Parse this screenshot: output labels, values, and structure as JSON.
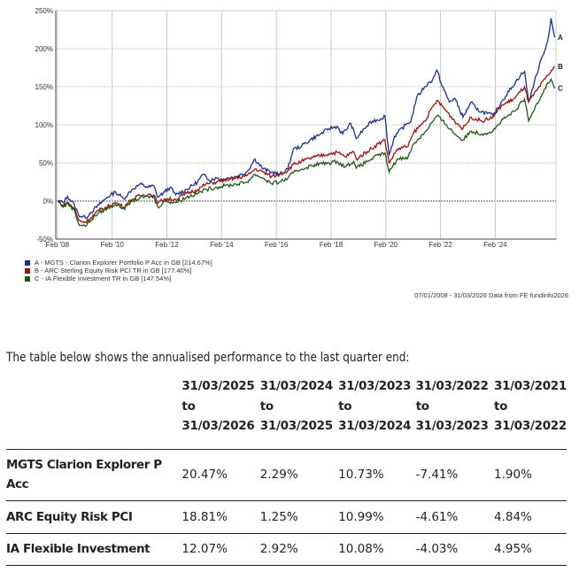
{
  "chart_data": {
    "type": "line",
    "title": "",
    "xlabel": "",
    "ylabel": "",
    "xlim": [
      2008.02,
      2026.3
    ],
    "ylim": [
      -50,
      250
    ],
    "yticks": [
      -50,
      0,
      50,
      100,
      150,
      200,
      250
    ],
    "ytick_labels": [
      "-50%",
      "0%",
      "50%",
      "100%",
      "150%",
      "200%",
      "250%"
    ],
    "xticks": [
      2008.08,
      2010.08,
      2012.08,
      2014.08,
      2016.08,
      2018.08,
      2020.08,
      2022.08,
      2024.08
    ],
    "xtick_labels": [
      "Feb '08",
      "Feb '10",
      "Feb '12",
      "Feb '14",
      "Feb '16",
      "Feb '18",
      "Feb '20",
      "Feb '22",
      "Feb '24"
    ],
    "grid": true,
    "legend_placement": "bottom-left",
    "series": [
      {
        "name": "A - MGTS - Clarion Explorer Portfolio P Acc in GB [214.67%]",
        "end_label": "A",
        "color": "#1a2f96",
        "points": [
          [
            2008.1,
            0
          ],
          [
            2008.3,
            -2
          ],
          [
            2008.45,
            6
          ],
          [
            2008.7,
            -5
          ],
          [
            2008.85,
            -18
          ],
          [
            2009.1,
            -22
          ],
          [
            2009.3,
            -15
          ],
          [
            2009.6,
            -5
          ],
          [
            2009.9,
            5
          ],
          [
            2010.2,
            12
          ],
          [
            2010.5,
            3
          ],
          [
            2010.8,
            15
          ],
          [
            2011.1,
            22
          ],
          [
            2011.4,
            18
          ],
          [
            2011.6,
            20
          ],
          [
            2011.75,
            5
          ],
          [
            2012.0,
            12
          ],
          [
            2012.2,
            18
          ],
          [
            2012.4,
            8
          ],
          [
            2012.8,
            15
          ],
          [
            2013.2,
            25
          ],
          [
            2013.4,
            35
          ],
          [
            2013.6,
            28
          ],
          [
            2013.9,
            30
          ],
          [
            2014.2,
            28
          ],
          [
            2014.6,
            32
          ],
          [
            2015.0,
            38
          ],
          [
            2015.3,
            55
          ],
          [
            2015.6,
            42
          ],
          [
            2015.9,
            38
          ],
          [
            2016.2,
            35
          ],
          [
            2016.5,
            42
          ],
          [
            2016.7,
            68
          ],
          [
            2017.0,
            72
          ],
          [
            2017.3,
            80
          ],
          [
            2017.7,
            88
          ],
          [
            2018.0,
            95
          ],
          [
            2018.3,
            98
          ],
          [
            2018.5,
            88
          ],
          [
            2018.8,
            102
          ],
          [
            2019.0,
            82
          ],
          [
            2019.3,
            95
          ],
          [
            2019.6,
            105
          ],
          [
            2019.9,
            108
          ],
          [
            2020.05,
            112
          ],
          [
            2020.2,
            60
          ],
          [
            2020.4,
            85
          ],
          [
            2020.8,
            100
          ],
          [
            2021.0,
            105
          ],
          [
            2021.2,
            135
          ],
          [
            2021.5,
            150
          ],
          [
            2021.8,
            160
          ],
          [
            2021.95,
            172
          ],
          [
            2022.1,
            155
          ],
          [
            2022.4,
            130
          ],
          [
            2022.6,
            135
          ],
          [
            2022.9,
            110
          ],
          [
            2023.2,
            130
          ],
          [
            2023.4,
            120
          ],
          [
            2023.8,
            115
          ],
          [
            2024.0,
            112
          ],
          [
            2024.3,
            130
          ],
          [
            2024.7,
            150
          ],
          [
            2025.0,
            165
          ],
          [
            2025.15,
            170
          ],
          [
            2025.3,
            130
          ],
          [
            2025.5,
            155
          ],
          [
            2025.8,
            190
          ],
          [
            2026.0,
            210
          ],
          [
            2026.12,
            240
          ],
          [
            2026.25,
            215
          ]
        ]
      },
      {
        "name": "B - ARC Sterling Equity Risk PCI TR in GB [177.40%]",
        "end_label": "B",
        "color": "#a01010",
        "points": [
          [
            2008.1,
            0
          ],
          [
            2008.3,
            -6
          ],
          [
            2008.45,
            -2
          ],
          [
            2008.7,
            -10
          ],
          [
            2008.85,
            -25
          ],
          [
            2009.1,
            -28
          ],
          [
            2009.3,
            -22
          ],
          [
            2009.6,
            -12
          ],
          [
            2009.9,
            -8
          ],
          [
            2010.2,
            -2
          ],
          [
            2010.5,
            -8
          ],
          [
            2010.8,
            2
          ],
          [
            2011.1,
            7
          ],
          [
            2011.4,
            9
          ],
          [
            2011.6,
            8
          ],
          [
            2011.75,
            -3
          ],
          [
            2012.0,
            3
          ],
          [
            2012.4,
            2
          ],
          [
            2012.8,
            10
          ],
          [
            2013.2,
            15
          ],
          [
            2013.5,
            22
          ],
          [
            2013.9,
            25
          ],
          [
            2014.2,
            28
          ],
          [
            2014.6,
            30
          ],
          [
            2015.0,
            33
          ],
          [
            2015.3,
            42
          ],
          [
            2015.6,
            38
          ],
          [
            2015.9,
            32
          ],
          [
            2016.2,
            35
          ],
          [
            2016.5,
            40
          ],
          [
            2016.7,
            48
          ],
          [
            2017.0,
            52
          ],
          [
            2017.5,
            58
          ],
          [
            2018.0,
            62
          ],
          [
            2018.3,
            64
          ],
          [
            2018.6,
            58
          ],
          [
            2018.9,
            65
          ],
          [
            2019.0,
            55
          ],
          [
            2019.4,
            65
          ],
          [
            2019.8,
            75
          ],
          [
            2020.05,
            80
          ],
          [
            2020.2,
            50
          ],
          [
            2020.5,
            68
          ],
          [
            2020.9,
            72
          ],
          [
            2021.1,
            90
          ],
          [
            2021.5,
            105
          ],
          [
            2021.95,
            132
          ],
          [
            2022.3,
            118
          ],
          [
            2022.6,
            105
          ],
          [
            2022.9,
            95
          ],
          [
            2023.2,
            110
          ],
          [
            2023.6,
            105
          ],
          [
            2024.0,
            110
          ],
          [
            2024.3,
            125
          ],
          [
            2024.8,
            135
          ],
          [
            2025.15,
            150
          ],
          [
            2025.3,
            130
          ],
          [
            2025.6,
            145
          ],
          [
            2026.0,
            165
          ],
          [
            2026.25,
            177
          ]
        ]
      },
      {
        "name": "C - IA Flexible Investment TR in GB [147.54%]",
        "end_label": "C",
        "color": "#1f5a14",
        "points": [
          [
            2008.1,
            0
          ],
          [
            2008.3,
            -8
          ],
          [
            2008.45,
            -3
          ],
          [
            2008.7,
            -12
          ],
          [
            2008.85,
            -30
          ],
          [
            2009.1,
            -33
          ],
          [
            2009.3,
            -25
          ],
          [
            2009.6,
            -15
          ],
          [
            2009.9,
            -10
          ],
          [
            2010.2,
            -4
          ],
          [
            2010.5,
            -10
          ],
          [
            2010.8,
            0
          ],
          [
            2011.1,
            4
          ],
          [
            2011.4,
            6
          ],
          [
            2011.6,
            5
          ],
          [
            2011.75,
            -8
          ],
          [
            2012.0,
            0
          ],
          [
            2012.4,
            -2
          ],
          [
            2012.8,
            5
          ],
          [
            2013.2,
            10
          ],
          [
            2013.5,
            15
          ],
          [
            2013.9,
            18
          ],
          [
            2014.2,
            20
          ],
          [
            2014.6,
            22
          ],
          [
            2015.0,
            25
          ],
          [
            2015.3,
            35
          ],
          [
            2015.6,
            30
          ],
          [
            2015.9,
            23
          ],
          [
            2016.2,
            25
          ],
          [
            2016.5,
            30
          ],
          [
            2016.7,
            37
          ],
          [
            2017.0,
            42
          ],
          [
            2017.5,
            48
          ],
          [
            2018.0,
            50
          ],
          [
            2018.3,
            52
          ],
          [
            2018.6,
            45
          ],
          [
            2018.9,
            52
          ],
          [
            2019.0,
            43
          ],
          [
            2019.4,
            52
          ],
          [
            2019.8,
            60
          ],
          [
            2020.05,
            63
          ],
          [
            2020.2,
            38
          ],
          [
            2020.5,
            55
          ],
          [
            2020.9,
            58
          ],
          [
            2021.1,
            75
          ],
          [
            2021.5,
            90
          ],
          [
            2021.95,
            112
          ],
          [
            2022.3,
            100
          ],
          [
            2022.6,
            88
          ],
          [
            2022.9,
            80
          ],
          [
            2023.2,
            92
          ],
          [
            2023.6,
            88
          ],
          [
            2024.0,
            92
          ],
          [
            2024.3,
            105
          ],
          [
            2024.8,
            118
          ],
          [
            2025.15,
            134
          ],
          [
            2025.3,
            105
          ],
          [
            2025.6,
            128
          ],
          [
            2026.0,
            155
          ],
          [
            2026.12,
            160
          ],
          [
            2026.25,
            148
          ]
        ]
      }
    ]
  },
  "source_note": "07/01/2008 - 31/03/2026 Data from FE fundinfo2026",
  "intro_text": "The table below shows the annualised performance to the last quarter end:",
  "table": {
    "headers": [
      {
        "from": "31/03/2025",
        "to_word": "to",
        "to": "31/03/2026"
      },
      {
        "from": "31/03/2024",
        "to_word": "to",
        "to": "31/03/2025"
      },
      {
        "from": "31/03/2023",
        "to_word": "to",
        "to": "31/03/2024"
      },
      {
        "from": "31/03/2022",
        "to_word": "to",
        "to": "31/03/2023"
      },
      {
        "from": "31/03/2021",
        "to_word": "to",
        "to": "31/03/2022"
      }
    ],
    "rows": [
      {
        "name": "MGTS Clarion Explorer P Acc",
        "values": [
          "20.47%",
          "2.29%",
          "10.73%",
          "-7.41%",
          "1.90%"
        ]
      },
      {
        "name": "ARC Equity Risk PCI",
        "values": [
          "18.81%",
          "1.25%",
          "10.99%",
          "-4.61%",
          "4.84%"
        ]
      },
      {
        "name": "IA Flexible Investment",
        "values": [
          "12.07%",
          "2.92%",
          "10.08%",
          "-4.03%",
          "4.95%"
        ]
      }
    ]
  }
}
